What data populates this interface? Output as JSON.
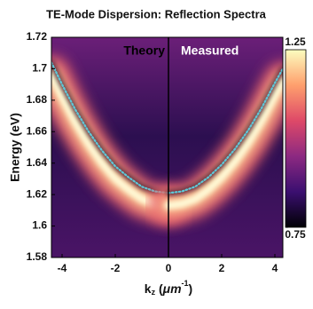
{
  "chart_data": {
    "type": "line",
    "title": "TE-Mode Dispersion: Reflection Spectra",
    "xlabel": [
      "k",
      "z",
      " (",
      "μ",
      "m",
      "-1",
      ")"
    ],
    "ylabel": "Energy (eV)",
    "xlim": [
      -4.4,
      4.3
    ],
    "xticks": [
      -4,
      -2,
      0,
      2,
      4
    ],
    "ylim": [
      1.58,
      1.72
    ],
    "yticks": [
      1.58,
      1.6,
      1.62,
      1.64,
      1.66,
      1.68,
      1.7,
      1.72
    ],
    "colorbar": {
      "lim": [
        0.75,
        1.25
      ],
      "ticks": [
        0.75,
        1.25
      ],
      "colors": [
        "#000004",
        "#3b0f70",
        "#8c2981",
        "#de4968",
        "#fe9f6d",
        "#fcfdbf"
      ]
    },
    "series": [
      {
        "name": "Theory",
        "color": "#5ec8d8",
        "x": [
          -4.4,
          -4,
          -3.5,
          -3,
          -2.5,
          -2,
          -1.5,
          -1,
          -0.5,
          0
        ],
        "values": [
          1.704,
          1.69,
          1.674,
          1.66,
          1.648,
          1.638,
          1.631,
          1.625,
          1.622,
          1.621
        ]
      },
      {
        "name": "Measured",
        "color": "#5ec8d8",
        "x": [
          0,
          0.5,
          1,
          1.5,
          2,
          2.5,
          3,
          3.5,
          4,
          4.3
        ],
        "values": [
          1.621,
          1.622,
          1.625,
          1.631,
          1.639,
          1.649,
          1.661,
          1.675,
          1.691,
          1.7
        ]
      }
    ]
  }
}
